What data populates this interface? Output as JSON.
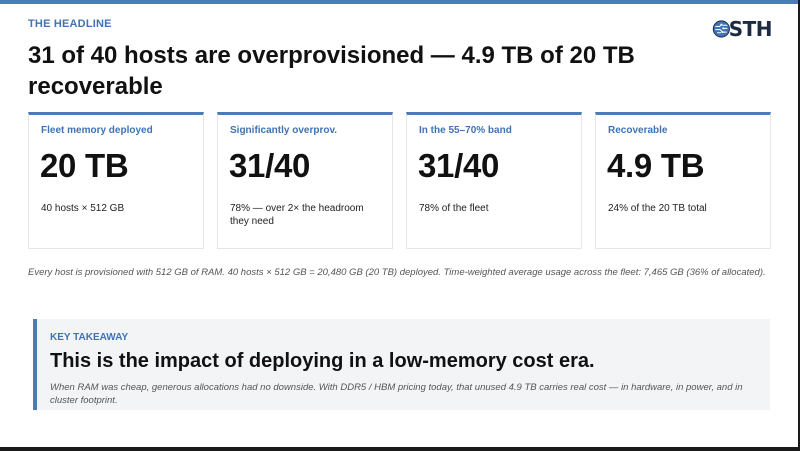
{
  "header": {
    "eyebrow": "THE HEADLINE",
    "headline": "31 of 40 hosts are overprovisioned — 4.9 TB of 20 TB recoverable",
    "logo_text": "STH",
    "logo_icon": "circuit-globe-icon"
  },
  "cards": [
    {
      "label": "Fleet memory deployed",
      "value": "20 TB",
      "sub": "40 hosts × 512 GB"
    },
    {
      "label": "Significantly overprov.",
      "value": "31/40",
      "sub": "78% — over 2× the headroom they need"
    },
    {
      "label": "In the 55–70% band",
      "value": "31/40",
      "sub": "78% of the fleet"
    },
    {
      "label": "Recoverable",
      "value": "4.9 TB",
      "sub": "24% of the 20 TB total"
    }
  ],
  "footnote": "Every host is provisioned with 512 GB of RAM. 40 hosts × 512 GB = 20,480 GB (20 TB) deployed.  Time-weighted average usage across the fleet: 7,465 GB (36% of allocated).",
  "takeaway": {
    "label": "KEY TAKEAWAY",
    "title": "This is the impact of deploying in a low-memory cost era.",
    "body": "When RAM was cheap, generous allocations had no downside. With DDR5 / HBM pricing today, that unused 4.9 TB carries real cost — in hardware, in power, and in cluster footprint."
  },
  "colors": {
    "accent": "#4a7cb8",
    "label": "#3f73b4",
    "panel": "#f3f4f6"
  }
}
